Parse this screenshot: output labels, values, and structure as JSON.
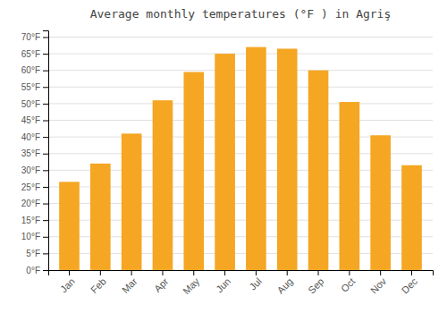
{
  "chart_data": {
    "type": "bar",
    "title": "Average monthly temperatures (°F ) in Agriş",
    "categories": [
      "Jan",
      "Feb",
      "Mar",
      "Apr",
      "May",
      "Jun",
      "Jul",
      "Aug",
      "Sep",
      "Oct",
      "Nov",
      "Dec"
    ],
    "values": [
      26.5,
      32,
      41,
      51,
      59.5,
      65,
      67,
      66.5,
      60,
      50.5,
      40.5,
      31.5
    ],
    "color": "#F5A623",
    "ylim": [
      0,
      72
    ],
    "yticks": [
      {
        "value": 0,
        "label": "0°F"
      },
      {
        "value": 5,
        "label": "5°F"
      },
      {
        "value": 10,
        "label": "10°F"
      },
      {
        "value": 15,
        "label": "15°F"
      },
      {
        "value": 20,
        "label": "20°F"
      },
      {
        "value": 25,
        "label": "25°F"
      },
      {
        "value": 30,
        "label": "30°F"
      },
      {
        "value": 35,
        "label": "35°F"
      },
      {
        "value": 40,
        "label": "40°F"
      },
      {
        "value": 45,
        "label": "45°F"
      },
      {
        "value": 50,
        "label": "50°F"
      },
      {
        "value": 55,
        "label": "55°F"
      },
      {
        "value": 60,
        "label": "60°F"
      },
      {
        "value": 65,
        "label": "65°F"
      },
      {
        "value": 70,
        "label": "70°F"
      }
    ],
    "grid": true
  }
}
